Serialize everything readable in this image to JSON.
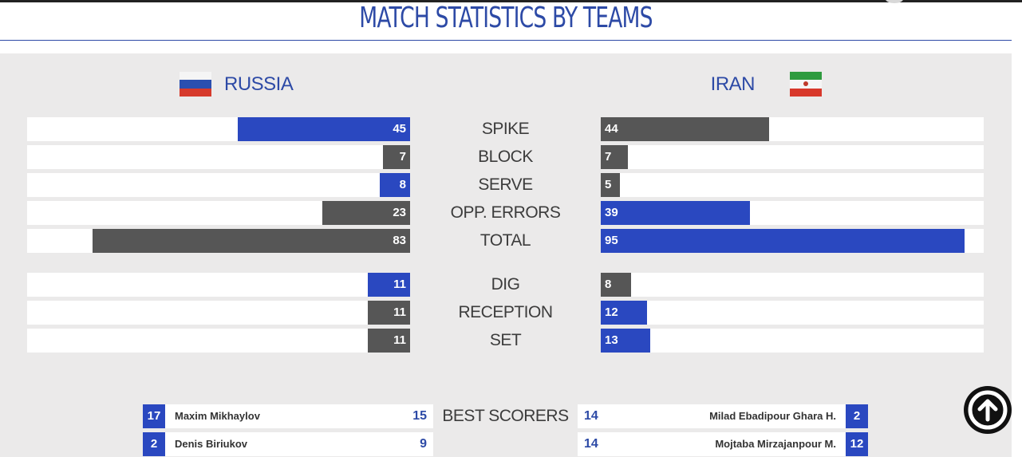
{
  "page": {
    "title": "MATCH STATISTICS BY TEAMS"
  },
  "teams": {
    "left": {
      "name": "RUSSIA",
      "flag": "russia-flag"
    },
    "right": {
      "name": "IRAN",
      "flag": "iran-flag"
    }
  },
  "colors": {
    "blue": "#2a48c0",
    "gray": "#565656",
    "title": "#2d4aa6"
  },
  "chart_data": {
    "type": "bar",
    "title": "MATCH STATISTICS BY TEAMS",
    "orientation": "horizontal, mirrored (left team extends left, right team extends right)",
    "categories": [
      "SPIKE",
      "BLOCK",
      "SERVE",
      "OPP. ERRORS",
      "TOTAL",
      "DIG",
      "RECEPTION",
      "SET"
    ],
    "series": [
      {
        "name": "RUSSIA",
        "values": [
          45,
          7,
          8,
          23,
          83,
          11,
          11,
          11
        ],
        "colors": [
          "blue",
          "gray",
          "blue",
          "gray",
          "gray",
          "blue",
          "gray",
          "gray"
        ]
      },
      {
        "name": "IRAN",
        "values": [
          44,
          7,
          5,
          39,
          95,
          8,
          12,
          13
        ],
        "colors": [
          "gray",
          "gray",
          "gray",
          "blue",
          "blue",
          "gray",
          "blue",
          "blue"
        ]
      }
    ]
  },
  "scorers": {
    "label": "BEST SCORERS",
    "left": [
      {
        "number": "17",
        "name": "Maxim Mikhaylov",
        "points": "15"
      },
      {
        "number": "2",
        "name": "Denis Biriukov",
        "points": "9"
      }
    ],
    "right": [
      {
        "number": "2",
        "name": "Milad Ebadipour Ghara H.",
        "points": "14"
      },
      {
        "number": "12",
        "name": "Mojtaba Mirzajanpour M.",
        "points": "14"
      }
    ]
  },
  "controls": {
    "scroll_top_icon": "arrow-up-circle-icon"
  }
}
